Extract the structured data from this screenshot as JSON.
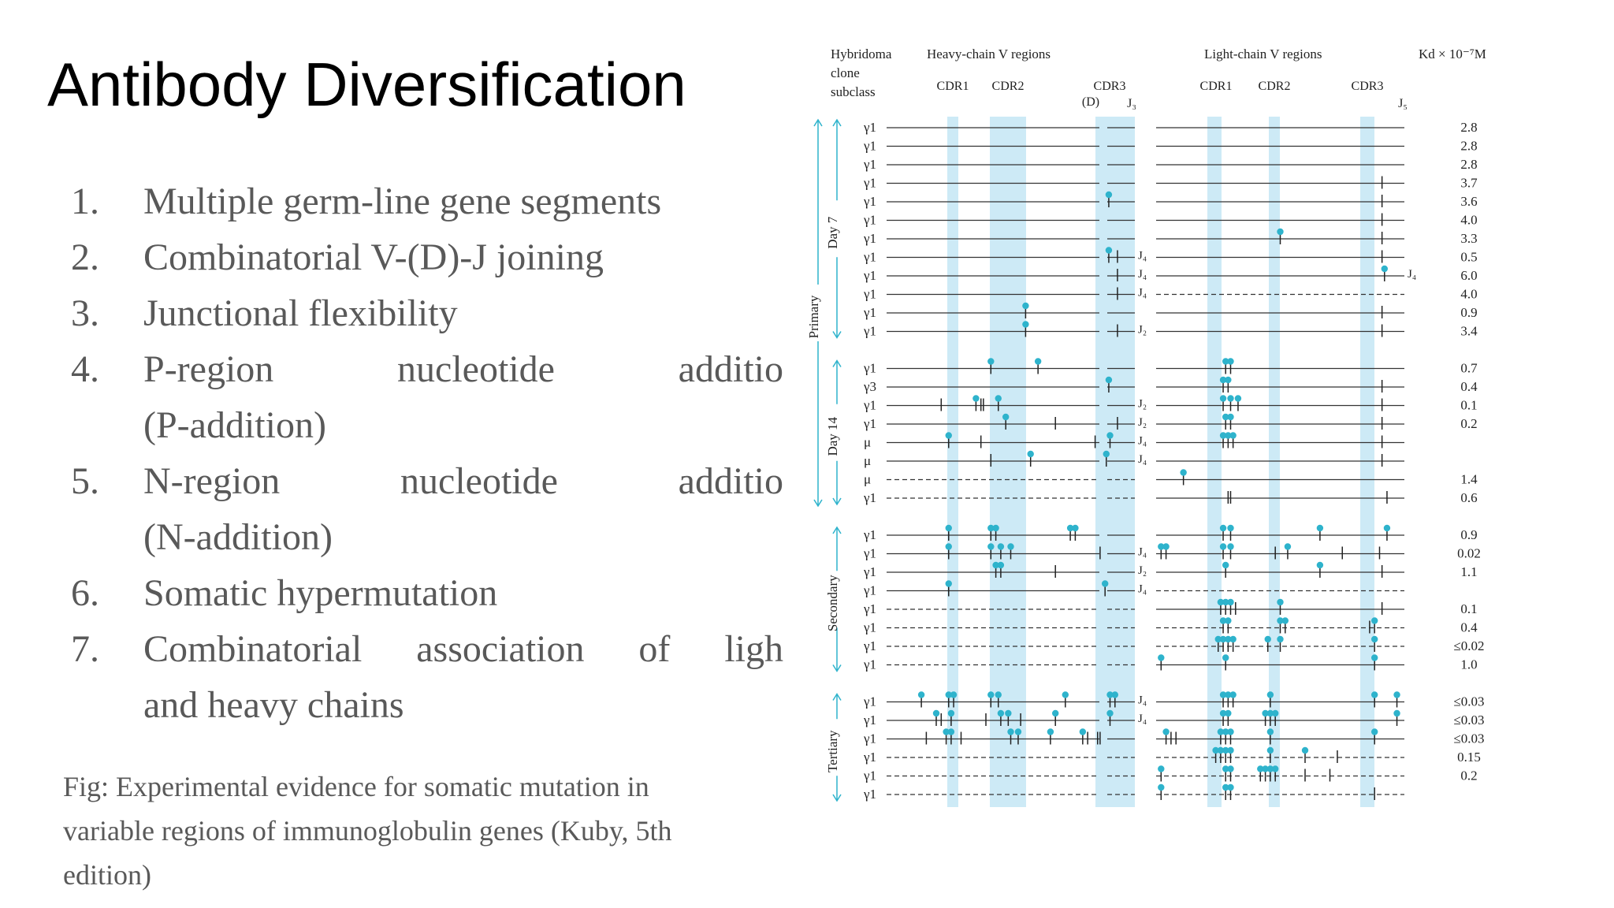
{
  "title": "Antibody Diversification",
  "list_items": [
    {
      "number": "1.",
      "text": "Multiple germ-line gene segments"
    },
    {
      "number": "2.",
      "text": "Combinatorial V-(D)-J joining"
    },
    {
      "number": "3.",
      "text": "Junctional flexibility"
    },
    {
      "number": "4.",
      "line1": "P-region nucleotide additio",
      "line2": "(P-addition)"
    },
    {
      "number": "5.",
      "line1": "N-region nucleotide additio",
      "line2": "(N-addition)"
    },
    {
      "number": "6.",
      "text": "Somatic hypermutation"
    },
    {
      "number": "7.",
      "line1": "Combinatorial association of ligh",
      "line2": "and heavy chains"
    }
  ],
  "caption": "Fig: Experimental evidence for somatic mutation in variable regions of immunoglobulin genes (Kuby, 5th edition)",
  "figure": {
    "headers": {
      "hybridoma": [
        "Hybridoma",
        "clone",
        "subclass"
      ],
      "heavy_title": "Heavy-chain V regions",
      "light_title": "Light-chain V regions",
      "kd": "Kd × 10⁻⁷M",
      "h_cdr1": "CDR1",
      "h_cdr2": "CDR2",
      "h_cdr3": "CDR3",
      "h_d": "(D)",
      "h_j": "J₃",
      "l_cdr1": "CDR1",
      "l_cdr2": "CDR2",
      "l_cdr3": "CDR3",
      "l_j": "J₅"
    },
    "group_labels": {
      "primary": "Primary",
      "day7": "Day 7",
      "day14": "Day 14",
      "secondary": "Secondary",
      "tertiary": "Tertiary"
    },
    "accent_color": "#2eb3cc",
    "band_color": "#cdeaf6",
    "rows": [
      {
        "sub": "γ1",
        "kd": "2.8",
        "hdash": false,
        "ldash": false,
        "hj": "",
        "lj": "",
        "hm": [],
        "lm": []
      },
      {
        "sub": "γ1",
        "kd": "2.8",
        "hdash": false,
        "ldash": false,
        "hj": "",
        "lj": "",
        "hm": [],
        "lm": []
      },
      {
        "sub": "γ1",
        "kd": "2.8",
        "hdash": false,
        "ldash": false,
        "hj": "",
        "lj": "",
        "hm": [],
        "lm": []
      },
      {
        "sub": "γ1",
        "kd": "3.7",
        "hdash": false,
        "ldash": false,
        "hj": "",
        "lj": "",
        "hm": [],
        "lm": [
          [
            "l",
            0.91
          ]
        ]
      },
      {
        "sub": "γ1",
        "kd": "3.6",
        "hdash": false,
        "ldash": false,
        "hj": "",
        "lj": "",
        "hm": [
          [
            "d",
            0.895
          ]
        ],
        "lm": [
          [
            "l",
            0.91
          ]
        ]
      },
      {
        "sub": "γ1",
        "kd": "4.0",
        "hdash": false,
        "ldash": false,
        "hj": "",
        "lj": "",
        "hm": [],
        "lm": [
          [
            "l",
            0.91
          ]
        ]
      },
      {
        "sub": "γ1",
        "kd": "3.3",
        "hdash": false,
        "ldash": false,
        "hj": "",
        "lj": "",
        "hm": [],
        "lm": [
          [
            "d",
            0.5
          ],
          [
            "l",
            0.91
          ]
        ]
      },
      {
        "sub": "γ1",
        "kd": "0.5",
        "hdash": false,
        "ldash": false,
        "hj": "J₄",
        "lj": "",
        "hm": [
          [
            "d",
            0.895
          ],
          [
            "l",
            0.93
          ]
        ],
        "lm": [
          [
            "l",
            0.91
          ]
        ]
      },
      {
        "sub": "γ1",
        "kd": "6.0",
        "hdash": false,
        "ldash": false,
        "hj": "J₄",
        "lj": "J₄",
        "hm": [
          [
            "l",
            0.93
          ]
        ],
        "lm": [
          [
            "d",
            0.92
          ]
        ]
      },
      {
        "sub": "γ1",
        "kd": "4.0",
        "hdash": false,
        "ldash": true,
        "hj": "J₄",
        "lj": "",
        "hm": [
          [
            "l",
            0.93
          ]
        ],
        "lm": []
      },
      {
        "sub": "γ1",
        "kd": "0.9",
        "hdash": false,
        "ldash": false,
        "hj": "",
        "lj": "",
        "hm": [
          [
            "d",
            0.56
          ]
        ],
        "lm": [
          [
            "l",
            0.91
          ]
        ]
      },
      {
        "sub": "γ1",
        "kd": "3.4",
        "hdash": false,
        "ldash": false,
        "hj": "J₂",
        "lj": "",
        "hm": [
          [
            "d",
            0.56
          ],
          [
            "l",
            0.93
          ]
        ],
        "lm": [
          [
            "l",
            0.91
          ]
        ]
      },
      {
        "sub": "γ1",
        "kd": "0.7",
        "hdash": false,
        "ldash": false,
        "hj": "",
        "lj": "",
        "hm": [
          [
            "d",
            0.42
          ],
          [
            "d",
            0.61
          ]
        ],
        "lm": [
          [
            "d",
            0.28
          ],
          [
            "d",
            0.3
          ]
        ]
      },
      {
        "sub": "γ3",
        "kd": "0.4",
        "hdash": false,
        "ldash": false,
        "hj": "",
        "lj": "",
        "hm": [
          [
            "d",
            0.895
          ]
        ],
        "lm": [
          [
            "d",
            0.27
          ],
          [
            "d",
            0.29
          ],
          [
            "l",
            0.91
          ]
        ]
      },
      {
        "sub": "γ1",
        "kd": "0.1",
        "hdash": false,
        "ldash": false,
        "hj": "J₂",
        "lj": "",
        "hm": [
          [
            "l",
            0.22
          ],
          [
            "d",
            0.36
          ],
          [
            "l",
            0.38
          ],
          [
            "l",
            0.39
          ],
          [
            "d",
            0.45
          ]
        ],
        "lm": [
          [
            "d",
            0.27
          ],
          [
            "d",
            0.3
          ],
          [
            "d",
            0.33
          ],
          [
            "l",
            0.91
          ]
        ]
      },
      {
        "sub": "γ1",
        "kd": "0.2",
        "hdash": false,
        "ldash": false,
        "hj": "J₂",
        "lj": "",
        "hm": [
          [
            "d",
            0.48
          ],
          [
            "l",
            0.68
          ],
          [
            "l",
            0.93
          ]
        ],
        "lm": [
          [
            "d",
            0.28
          ],
          [
            "d",
            0.3
          ],
          [
            "l",
            0.91
          ]
        ]
      },
      {
        "sub": "μ",
        "kd": "",
        "hdash": false,
        "ldash": false,
        "hj": "J₄",
        "lj": "",
        "hm": [
          [
            "d",
            0.25
          ],
          [
            "l",
            0.38
          ],
          [
            "l",
            0.84
          ],
          [
            "d",
            0.9
          ]
        ],
        "lm": [
          [
            "d",
            0.27
          ],
          [
            "d",
            0.29
          ],
          [
            "d",
            0.31
          ],
          [
            "l",
            0.91
          ]
        ]
      },
      {
        "sub": "μ",
        "kd": "",
        "hdash": false,
        "ldash": false,
        "hj": "J₄",
        "lj": "",
        "hm": [
          [
            "l",
            0.42
          ],
          [
            "d",
            0.58
          ],
          [
            "d",
            0.885
          ]
        ],
        "lm": [
          [
            "l",
            0.91
          ]
        ]
      },
      {
        "sub": "μ",
        "kd": "1.4",
        "hdash": true,
        "ldash": false,
        "hj": "",
        "lj": "",
        "hm": [],
        "lm": [
          [
            "d",
            0.11
          ]
        ]
      },
      {
        "sub": "γ1",
        "kd": "0.6",
        "hdash": true,
        "ldash": false,
        "hj": "",
        "lj": "",
        "hm": [],
        "lm": [
          [
            "l",
            0.29
          ],
          [
            "l",
            0.3
          ],
          [
            "l",
            0.93
          ]
        ]
      },
      {
        "sub": "γ1",
        "kd": "0.9",
        "hdash": false,
        "ldash": false,
        "hj": "",
        "lj": "",
        "hm": [
          [
            "d",
            0.25
          ],
          [
            "d",
            0.42
          ],
          [
            "d",
            0.44
          ],
          [
            "d",
            0.74
          ],
          [
            "d",
            0.76
          ]
        ],
        "lm": [
          [
            "d",
            0.27
          ],
          [
            "d",
            0.3
          ],
          [
            "d",
            0.66
          ],
          [
            "d",
            0.93
          ]
        ]
      },
      {
        "sub": "γ1",
        "kd": "0.02",
        "hdash": false,
        "ldash": false,
        "hj": "J₄",
        "lj": "",
        "hm": [
          [
            "d",
            0.25
          ],
          [
            "d",
            0.42
          ],
          [
            "d",
            0.46
          ],
          [
            "d",
            0.5
          ],
          [
            "l",
            0.86
          ]
        ],
        "lm": [
          [
            "d",
            0.02
          ],
          [
            "d",
            0.04
          ],
          [
            "d",
            0.27
          ],
          [
            "d",
            0.3
          ],
          [
            "l",
            0.48
          ],
          [
            "d",
            0.53
          ],
          [
            "l",
            0.75
          ],
          [
            "l",
            0.9
          ]
        ]
      },
      {
        "sub": "γ1",
        "kd": "1.1",
        "hdash": false,
        "ldash": false,
        "hj": "J₂",
        "lj": "",
        "hm": [
          [
            "d",
            0.44
          ],
          [
            "d",
            0.46
          ],
          [
            "l",
            0.68
          ]
        ],
        "lm": [
          [
            "d",
            0.28
          ],
          [
            "d",
            0.66
          ],
          [
            "l",
            0.91
          ]
        ]
      },
      {
        "sub": "γ1",
        "kd": "",
        "hdash": false,
        "ldash": true,
        "hj": "J₄",
        "lj": "",
        "hm": [
          [
            "d",
            0.25
          ],
          [
            "d",
            0.88
          ]
        ],
        "lm": []
      },
      {
        "sub": "γ1",
        "kd": "0.1",
        "hdash": true,
        "ldash": false,
        "hj": "",
        "lj": "",
        "hm": [],
        "lm": [
          [
            "d",
            0.26
          ],
          [
            "d",
            0.28
          ],
          [
            "d",
            0.3
          ],
          [
            "l",
            0.32
          ],
          [
            "d",
            0.5
          ],
          [
            "l",
            0.91
          ]
        ]
      },
      {
        "sub": "γ1",
        "kd": "0.4",
        "hdash": true,
        "ldash": true,
        "hj": "",
        "lj": "",
        "hm": [],
        "lm": [
          [
            "d",
            0.27
          ],
          [
            "d",
            0.29
          ],
          [
            "d",
            0.5
          ],
          [
            "d",
            0.52
          ],
          [
            "l",
            0.86
          ],
          [
            "d",
            0.88
          ]
        ]
      },
      {
        "sub": "γ1",
        "kd": "≤0.02",
        "hdash": true,
        "ldash": true,
        "hj": "",
        "lj": "",
        "hm": [],
        "lm": [
          [
            "d",
            0.25
          ],
          [
            "d",
            0.27
          ],
          [
            "d",
            0.29
          ],
          [
            "d",
            0.31
          ],
          [
            "d",
            0.45
          ],
          [
            "d",
            0.5
          ],
          [
            "d",
            0.88
          ]
        ]
      },
      {
        "sub": "γ1",
        "kd": "1.0",
        "hdash": true,
        "ldash": false,
        "hj": "",
        "lj": "",
        "hm": [],
        "lm": [
          [
            "d",
            0.02
          ],
          [
            "d",
            0.28
          ],
          [
            "d",
            0.88
          ]
        ]
      },
      {
        "sub": "γ1",
        "kd": "≤0.03",
        "hdash": false,
        "ldash": false,
        "hj": "J₄",
        "lj": "",
        "hm": [
          [
            "d",
            0.14
          ],
          [
            "d",
            0.25
          ],
          [
            "d",
            0.27
          ],
          [
            "d",
            0.42
          ],
          [
            "d",
            0.45
          ],
          [
            "d",
            0.72
          ],
          [
            "d",
            0.9
          ],
          [
            "d",
            0.92
          ]
        ],
        "lm": [
          [
            "d",
            0.27
          ],
          [
            "d",
            0.29
          ],
          [
            "d",
            0.31
          ],
          [
            "d",
            0.46
          ],
          [
            "d",
            0.88
          ],
          [
            "d",
            0.97
          ]
        ]
      },
      {
        "sub": "γ1",
        "kd": "≤0.03",
        "hdash": false,
        "ldash": false,
        "hj": "J₄",
        "lj": "",
        "hm": [
          [
            "d",
            0.2
          ],
          [
            "l",
            0.22
          ],
          [
            "d",
            0.26
          ],
          [
            "l",
            0.4
          ],
          [
            "d",
            0.46
          ],
          [
            "d",
            0.49
          ],
          [
            "l",
            0.54
          ],
          [
            "d",
            0.68
          ],
          [
            "d",
            0.9
          ]
        ],
        "lm": [
          [
            "d",
            0.27
          ],
          [
            "d",
            0.29
          ],
          [
            "d",
            0.44
          ],
          [
            "d",
            0.46
          ],
          [
            "d",
            0.48
          ],
          [
            "d",
            0.97
          ]
        ]
      },
      {
        "sub": "γ1",
        "kd": "≤0.03",
        "hdash": false,
        "ldash": false,
        "hj": "",
        "lj": "",
        "hm": [
          [
            "l",
            0.16
          ],
          [
            "d",
            0.24
          ],
          [
            "d",
            0.26
          ],
          [
            "l",
            0.3
          ],
          [
            "d",
            0.5
          ],
          [
            "d",
            0.53
          ],
          [
            "d",
            0.66
          ],
          [
            "d",
            0.79
          ],
          [
            "l",
            0.81
          ],
          [
            "l",
            0.85
          ],
          [
            "l",
            0.86
          ]
        ],
        "lm": [
          [
            "d",
            0.04
          ],
          [
            "l",
            0.06
          ],
          [
            "l",
            0.08
          ],
          [
            "d",
            0.26
          ],
          [
            "d",
            0.28
          ],
          [
            "d",
            0.3
          ],
          [
            "d",
            0.46
          ],
          [
            "d",
            0.88
          ]
        ]
      },
      {
        "sub": "γ1",
        "kd": "0.15",
        "hdash": true,
        "ldash": true,
        "hj": "",
        "lj": "",
        "hm": [],
        "lm": [
          [
            "d",
            0.24
          ],
          [
            "d",
            0.26
          ],
          [
            "d",
            0.28
          ],
          [
            "d",
            0.3
          ],
          [
            "d",
            0.46
          ],
          [
            "d",
            0.6
          ],
          [
            "l",
            0.73
          ]
        ]
      },
      {
        "sub": "γ1",
        "kd": "0.2",
        "hdash": true,
        "ldash": true,
        "hj": "",
        "lj": "",
        "hm": [],
        "lm": [
          [
            "d",
            0.02
          ],
          [
            "d",
            0.28
          ],
          [
            "d",
            0.3
          ],
          [
            "d",
            0.42
          ],
          [
            "d",
            0.44
          ],
          [
            "d",
            0.46
          ],
          [
            "d",
            0.48
          ],
          [
            "l",
            0.6
          ],
          [
            "l",
            0.7
          ]
        ]
      },
      {
        "sub": "γ1",
        "kd": "",
        "hdash": true,
        "ldash": true,
        "hj": "",
        "lj": "",
        "hm": [],
        "lm": [
          [
            "d",
            0.02
          ],
          [
            "d",
            0.28
          ],
          [
            "d",
            0.3
          ],
          [
            "l",
            0.88
          ]
        ]
      }
    ]
  }
}
